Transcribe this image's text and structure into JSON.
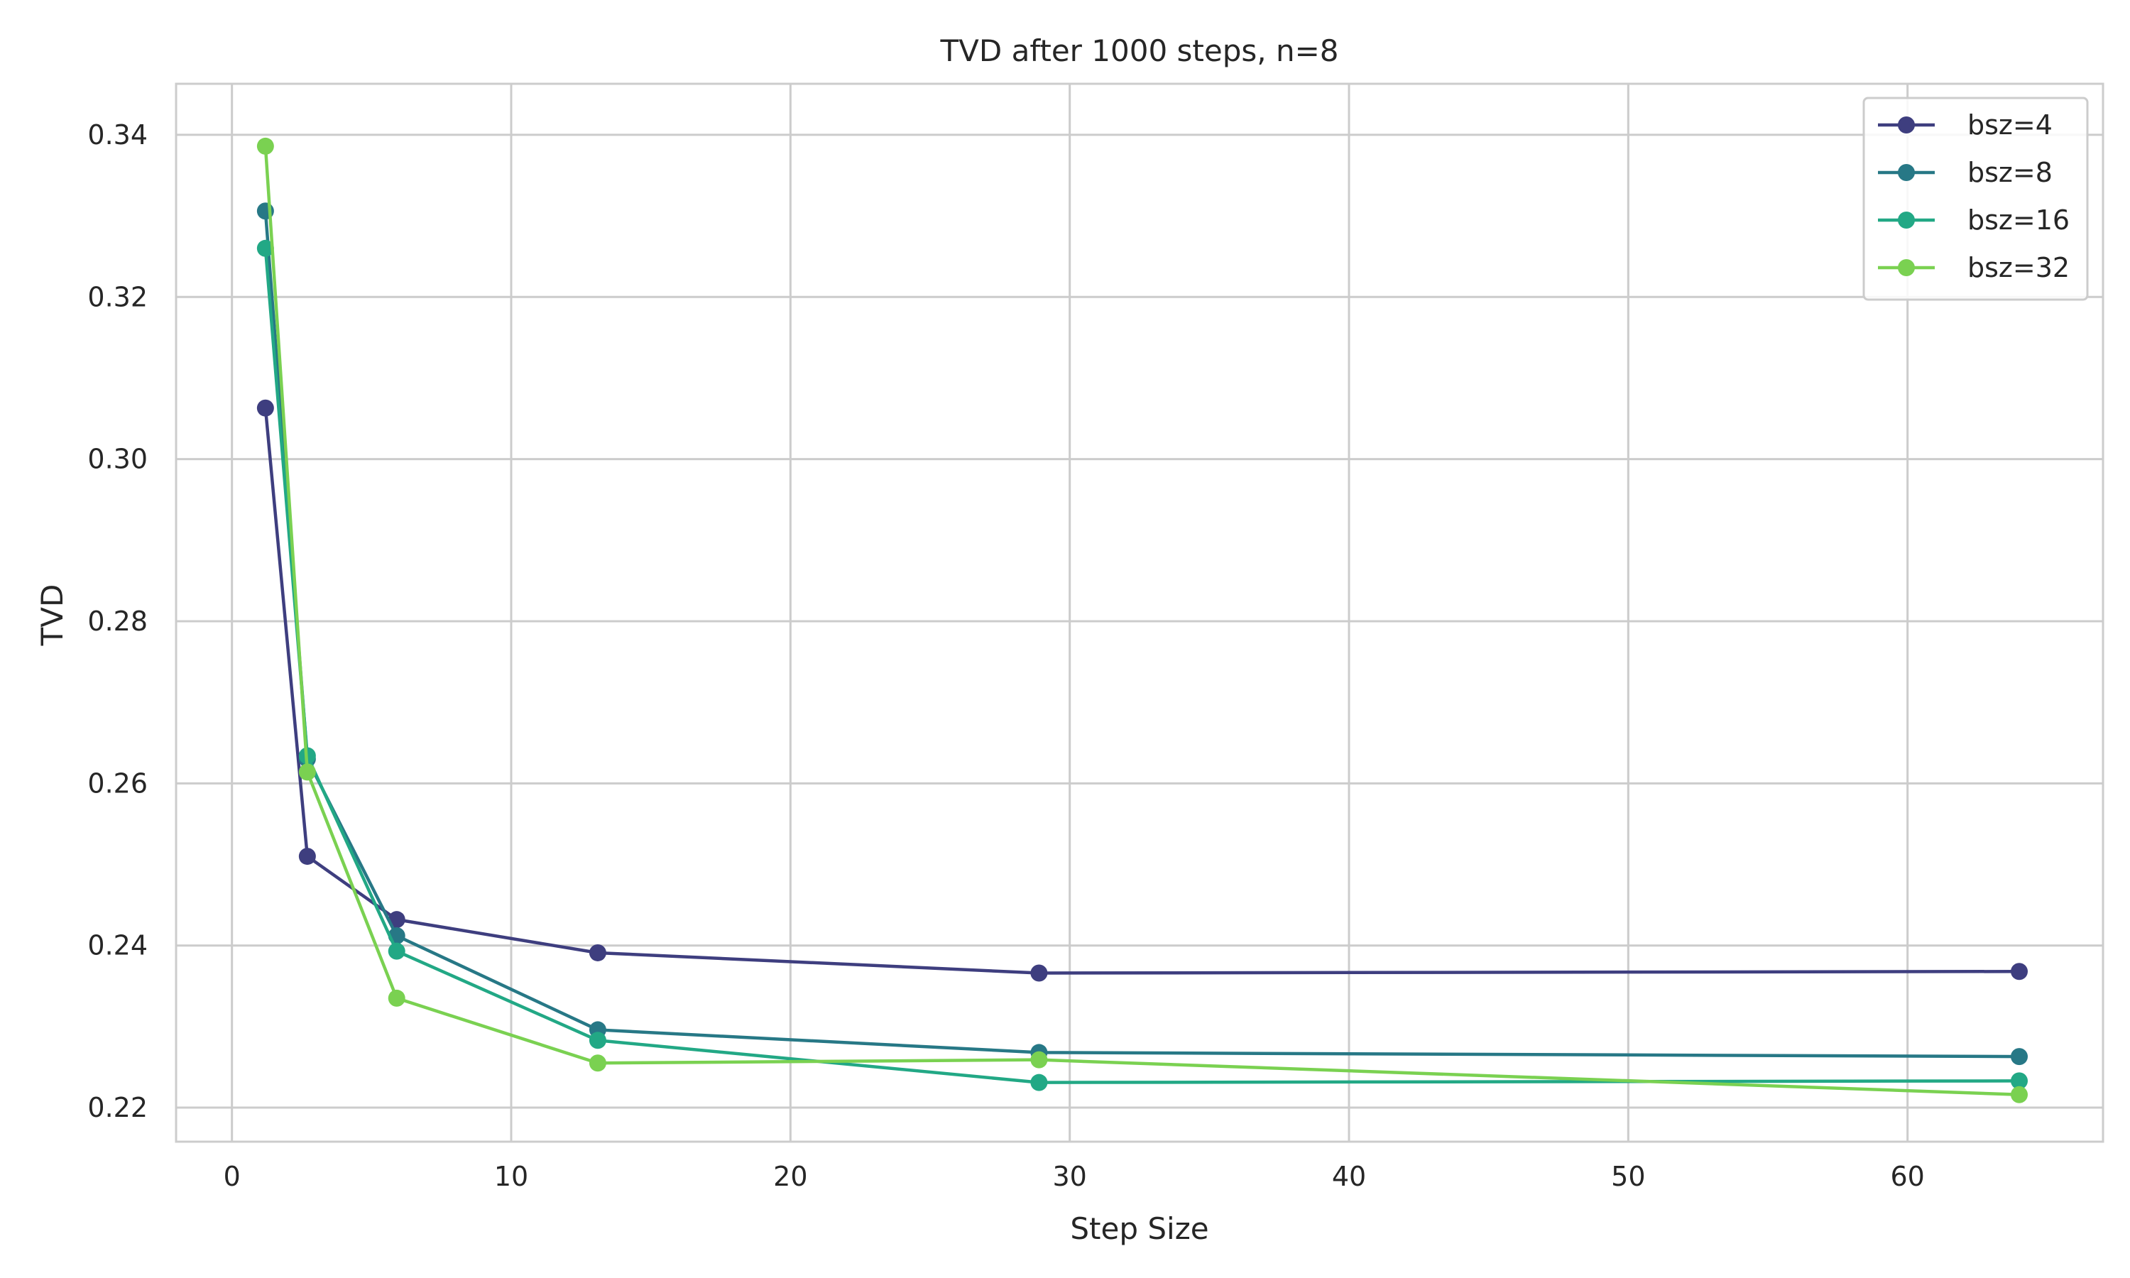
{
  "chart_data": {
    "type": "line",
    "title": "TVD after 1000 steps, n=8",
    "xlabel": "Step Size",
    "ylabel": "TVD",
    "xlim": [
      -2,
      67
    ],
    "ylim": [
      0.2158,
      0.3463
    ],
    "xticks": [
      0,
      10,
      20,
      30,
      40,
      50,
      60
    ],
    "yticks": [
      0.22,
      0.24,
      0.26,
      0.28,
      0.3,
      0.32,
      0.34
    ],
    "ytick_labels": [
      "0.22",
      "0.24",
      "0.26",
      "0.28",
      "0.30",
      "0.32",
      "0.34"
    ],
    "grid": true,
    "legend_position": "top-right",
    "x": [
      1.2,
      2.7,
      5.9,
      13.1,
      28.9,
      64.0
    ],
    "series": [
      {
        "name": "bsz=4",
        "color": "#3e3e7f",
        "values": [
          0.3063,
          0.251,
          0.2432,
          0.2391,
          0.2366,
          0.2368
        ]
      },
      {
        "name": "bsz=8",
        "color": "#277886",
        "values": [
          0.3306,
          0.263,
          0.2412,
          0.2296,
          0.2268,
          0.2263
        ]
      },
      {
        "name": "bsz=16",
        "color": "#22a885",
        "values": [
          0.326,
          0.2634,
          0.2393,
          0.2283,
          0.2231,
          0.2233
        ]
      },
      {
        "name": "bsz=32",
        "color": "#7ad151",
        "values": [
          0.3386,
          0.2614,
          0.2335,
          0.2255,
          0.2259,
          0.2216
        ]
      }
    ]
  }
}
